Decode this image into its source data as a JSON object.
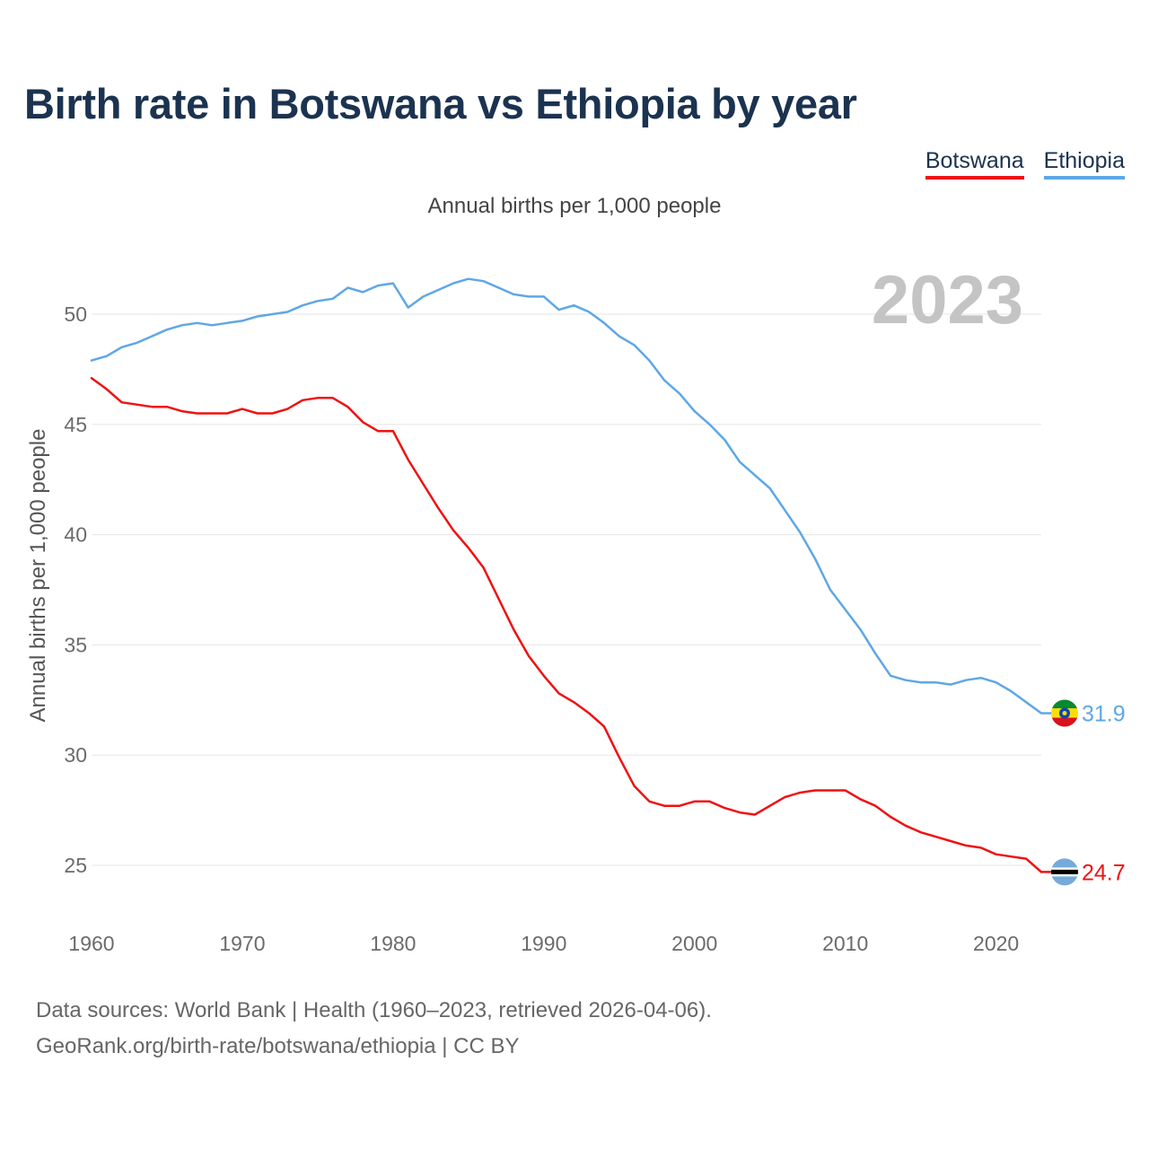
{
  "header": {
    "title": "Birth rate in Botswana vs Ethiopia by year",
    "subtitle": "Annual births per 1,000 people"
  },
  "legend": {
    "items": [
      "Botswana",
      "Ethiopia"
    ]
  },
  "footer": {
    "line1": "Data sources: World Bank | Health (1960–2023, retrieved 2026-04-06).",
    "line2": "GeoRank.org/birth-rate/botswana/ethiopia | CC BY"
  },
  "colors": {
    "botswana": "#ef1111",
    "ethiopia": "#5ea7e6",
    "grid": "#e6e6e6",
    "tick": "#6b6b6b",
    "year_watermark": "#c4c4c4"
  },
  "chart_data": {
    "type": "line",
    "title": "Birth rate in Botswana vs Ethiopia by year",
    "subtitle": "Annual births per 1,000 people",
    "xlabel": "",
    "ylabel": "Annual births per 1,000 people",
    "xlim": [
      1960,
      2023
    ],
    "ylim": [
      23,
      52.5
    ],
    "x_ticks": [
      1960,
      1970,
      1980,
      1990,
      2000,
      2010,
      2020
    ],
    "y_ticks": [
      25,
      30,
      35,
      40,
      45,
      50
    ],
    "grid": true,
    "legend_position": "top-right",
    "year_label": "2023",
    "x": [
      1960,
      1961,
      1962,
      1963,
      1964,
      1965,
      1966,
      1967,
      1968,
      1969,
      1970,
      1971,
      1972,
      1973,
      1974,
      1975,
      1976,
      1977,
      1978,
      1979,
      1980,
      1981,
      1982,
      1983,
      1984,
      1985,
      1986,
      1987,
      1988,
      1989,
      1990,
      1991,
      1992,
      1993,
      1994,
      1995,
      1996,
      1997,
      1998,
      1999,
      2000,
      2001,
      2002,
      2003,
      2004,
      2005,
      2006,
      2007,
      2008,
      2009,
      2010,
      2011,
      2012,
      2013,
      2014,
      2015,
      2016,
      2017,
      2018,
      2019,
      2020,
      2021,
      2022,
      2023
    ],
    "series": [
      {
        "name": "Botswana",
        "color": "#ef1111",
        "flag": "botswana",
        "end_label": "24.7",
        "values": [
          47.1,
          46.6,
          46.0,
          45.9,
          45.8,
          45.8,
          45.6,
          45.5,
          45.5,
          45.5,
          45.7,
          45.5,
          45.5,
          45.7,
          46.1,
          46.2,
          46.2,
          45.8,
          45.1,
          44.7,
          44.7,
          43.4,
          42.3,
          41.2,
          40.2,
          39.4,
          38.5,
          37.1,
          35.7,
          34.5,
          33.6,
          32.8,
          32.4,
          31.9,
          31.3,
          29.9,
          28.6,
          27.9,
          27.7,
          27.7,
          27.9,
          27.9,
          27.6,
          27.4,
          27.3,
          27.7,
          28.1,
          28.3,
          28.4,
          28.4,
          28.4,
          28.0,
          27.7,
          27.2,
          26.8,
          26.5,
          26.3,
          26.1,
          25.9,
          25.8,
          25.5,
          25.4,
          25.3,
          24.7
        ]
      },
      {
        "name": "Ethiopia",
        "color": "#5ea7e6",
        "flag": "ethiopia",
        "end_label": "31.9",
        "values": [
          47.9,
          48.1,
          48.5,
          48.7,
          49.0,
          49.3,
          49.5,
          49.6,
          49.5,
          49.6,
          49.7,
          49.9,
          50.0,
          50.1,
          50.4,
          50.6,
          50.7,
          51.2,
          51.0,
          51.3,
          51.4,
          50.3,
          50.8,
          51.1,
          51.4,
          51.6,
          51.5,
          51.2,
          50.9,
          50.8,
          50.8,
          50.2,
          50.4,
          50.1,
          49.6,
          49.0,
          48.6,
          47.9,
          47.0,
          46.4,
          45.6,
          45.0,
          44.3,
          43.3,
          42.7,
          42.1,
          41.1,
          40.1,
          38.9,
          37.5,
          36.6,
          35.7,
          34.6,
          33.6,
          33.4,
          33.3,
          33.3,
          33.2,
          33.4,
          33.5,
          33.3,
          32.9,
          32.4,
          31.9
        ]
      }
    ]
  }
}
